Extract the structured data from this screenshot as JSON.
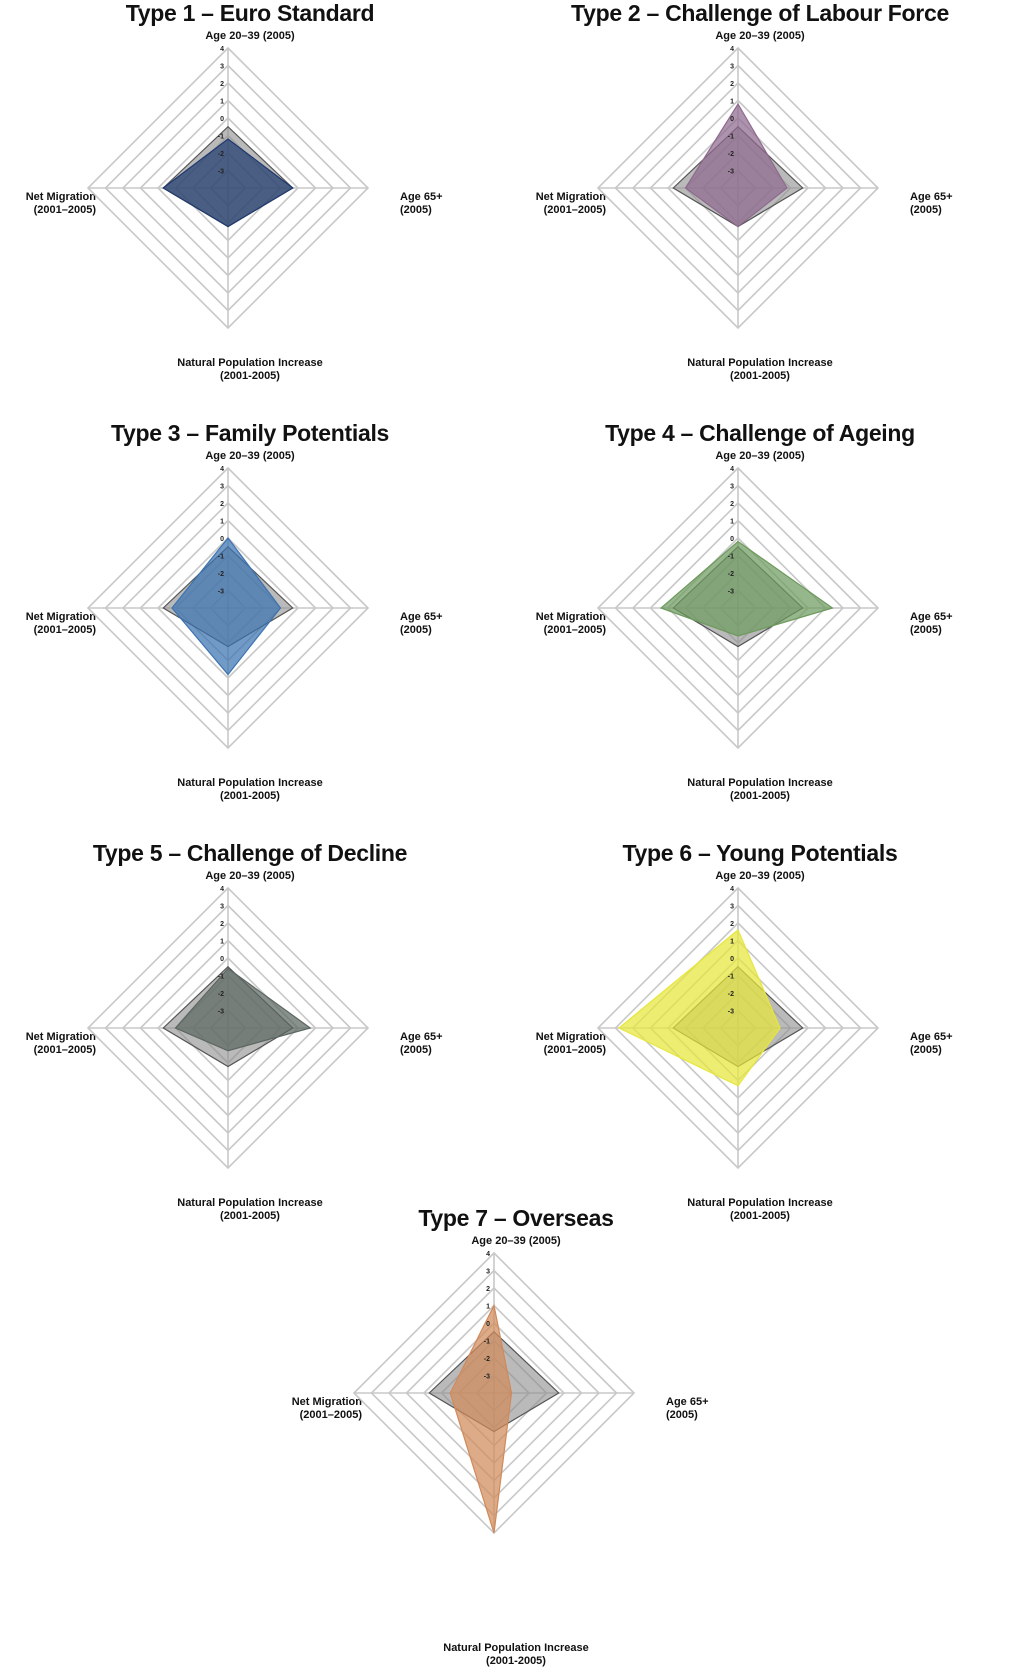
{
  "chart_data": [
    {
      "type": "radar",
      "title": "Type 1 – Euro Standard",
      "axes": {
        "top": "Age 20–39 (2005)",
        "right_lines": [
          "Age 65+",
          "(2005)"
        ],
        "bottom_lines": [
          "Natural Population Increase",
          "(2001-2005)"
        ],
        "left_lines": [
          "Net Migration",
          "(2001–2005)"
        ]
      },
      "ticks": [
        "4",
        "3",
        "2",
        "1",
        "0",
        "-1",
        "-2",
        "-3"
      ],
      "rlim": [
        -4,
        4
      ],
      "reference": [
        -0.5,
        -0.3,
        -1.8,
        -0.3
      ],
      "series": [
        {
          "values": [
            -1.2,
            -0.3,
            -1.8,
            -0.3
          ]
        }
      ],
      "color": "#1f3a6e"
    },
    {
      "type": "radar",
      "title": "Type 2 – Challenge of Labour Force",
      "axes": {
        "top": "Age 20–39 (2005)",
        "right_lines": [
          "Age 65+",
          "(2005)"
        ],
        "bottom_lines": [
          "Natural Population Increase",
          "(2001-2005)"
        ],
        "left_lines": [
          "Net Migration",
          "(2001–2005)"
        ]
      },
      "ticks": [
        "4",
        "3",
        "2",
        "1",
        "0",
        "-1",
        "-2",
        "-3"
      ],
      "rlim": [
        -4,
        4
      ],
      "reference": [
        -0.5,
        -0.3,
        -1.8,
        -0.3
      ],
      "series": [
        {
          "values": [
            0.8,
            -1.2,
            -1.8,
            -1.0
          ]
        }
      ],
      "color": "#8e6a8e"
    },
    {
      "type": "radar",
      "title": "Type 3 – Family Potentials",
      "axes": {
        "top": "Age 20–39 (2005)",
        "right_lines": [
          "Age 65+",
          "(2005)"
        ],
        "bottom_lines": [
          "Natural Population Increase",
          "(2001-2005)"
        ],
        "left_lines": [
          "Net Migration",
          "(2001–2005)"
        ]
      },
      "ticks": [
        "4",
        "3",
        "2",
        "1",
        "0",
        "-1",
        "-2",
        "-3"
      ],
      "rlim": [
        -4,
        4
      ],
      "reference": [
        -0.5,
        -0.3,
        -1.8,
        -0.3
      ],
      "series": [
        {
          "values": [
            0.0,
            -1.0,
            -0.2,
            -0.8
          ]
        }
      ],
      "color": "#3c73b0"
    },
    {
      "type": "radar",
      "title": "Type 4 – Challenge of Ageing",
      "axes": {
        "top": "Age 20–39 (2005)",
        "right_lines": [
          "Age 65+",
          "(2005)"
        ],
        "bottom_lines": [
          "Natural Population Increase",
          "(2001-2005)"
        ],
        "left_lines": [
          "Net Migration",
          "(2001–2005)"
        ]
      },
      "ticks": [
        "4",
        "3",
        "2",
        "1",
        "0",
        "-1",
        "-2",
        "-3"
      ],
      "rlim": [
        -4,
        4
      ],
      "reference": [
        -0.5,
        -0.3,
        -1.8,
        -0.3
      ],
      "series": [
        {
          "values": [
            -0.2,
            1.4,
            -2.4,
            0.4
          ]
        }
      ],
      "color": "#6e9a5e"
    },
    {
      "type": "radar",
      "title": "Type 5 – Challenge of Decline",
      "axes": {
        "top": "Age 20–39 (2005)",
        "right_lines": [
          "Age 65+",
          "(2005)"
        ],
        "bottom_lines": [
          "Natural Population Increase",
          "(2001-2005)"
        ],
        "left_lines": [
          "Net Migration",
          "(2001–2005)"
        ]
      },
      "ticks": [
        "4",
        "3",
        "2",
        "1",
        "0",
        "-1",
        "-2",
        "-3"
      ],
      "rlim": [
        -4,
        4
      ],
      "reference": [
        -0.5,
        -0.3,
        -1.8,
        -0.3
      ],
      "series": [
        {
          "values": [
            -0.6,
            0.7,
            -2.7,
            -1.0
          ]
        }
      ],
      "color": "#5c6660"
    },
    {
      "type": "radar",
      "title": "Type 6 – Young Potentials",
      "axes": {
        "top": "Age 20–39 (2005)",
        "right_lines": [
          "Age 65+",
          "(2005)"
        ],
        "bottom_lines": [
          "Natural Population Increase",
          "(2001-2005)"
        ],
        "left_lines": [
          "Net Migration",
          "(2001–2005)"
        ]
      },
      "ticks": [
        "4",
        "3",
        "2",
        "1",
        "0",
        "-1",
        "-2",
        "-3"
      ],
      "rlim": [
        -4,
        4
      ],
      "reference": [
        -0.5,
        -0.3,
        -1.8,
        -0.3
      ],
      "series": [
        {
          "values": [
            1.6,
            -1.6,
            -0.7,
            2.8
          ]
        }
      ],
      "color": "#e6e63c"
    },
    {
      "type": "radar",
      "title": "Type 7 – Overseas",
      "axes": {
        "top": "Age 20–39 (2005)",
        "right_lines": [
          "Age 65+",
          "(2005)"
        ],
        "bottom_lines": [
          "Natural Population Increase",
          "(2001-2005)"
        ],
        "left_lines": [
          "Net Migration",
          "(2001–2005)"
        ]
      },
      "ticks": [
        "4",
        "3",
        "2",
        "1",
        "0",
        "-1",
        "-2",
        "-3"
      ],
      "rlim": [
        -4,
        4
      ],
      "reference": [
        -0.5,
        -0.3,
        -1.8,
        -0.3
      ],
      "series": [
        {
          "values": [
            1.0,
            -3.0,
            4.0,
            -1.5
          ]
        }
      ],
      "color": "#d08a5a"
    }
  ]
}
